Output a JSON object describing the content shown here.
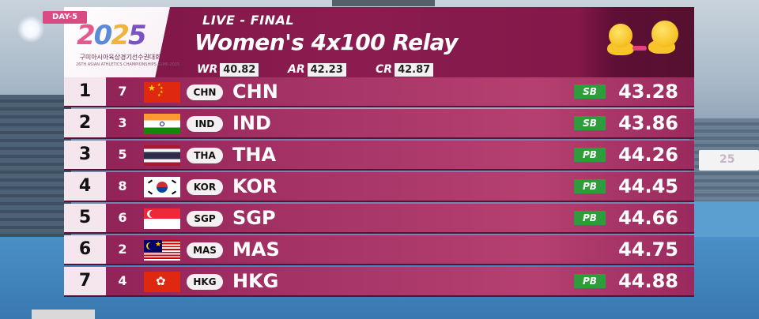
{
  "header": {
    "day_tag": "DAY-5",
    "logo_text": "2025",
    "logo_subtitle": "구미아시아육상경기선수권대회",
    "logo_subtitle_en": "26TH ASIAN ATHLETICS CHAMPIONSHIPS GUMI 2025",
    "live_label": "LIVE - FINAL",
    "event_title": "Women's 4x100 Relay",
    "records": [
      {
        "label": "WR",
        "value": "40.82"
      },
      {
        "label": "AR",
        "value": "42.23"
      },
      {
        "label": "CR",
        "value": "42.87"
      }
    ]
  },
  "results": [
    {
      "rank": "1",
      "lane": "7",
      "flag": "china-flag",
      "code": "CHN",
      "team": "CHN",
      "badge": "SB",
      "time": "43.28"
    },
    {
      "rank": "2",
      "lane": "3",
      "flag": "india-flag",
      "code": "IND",
      "team": "IND",
      "badge": "SB",
      "time": "43.86"
    },
    {
      "rank": "3",
      "lane": "5",
      "flag": "thailand-flag",
      "code": "THA",
      "team": "THA",
      "badge": "PB",
      "time": "44.26"
    },
    {
      "rank": "4",
      "lane": "8",
      "flag": "korea-flag",
      "code": "KOR",
      "team": "KOR",
      "badge": "PB",
      "time": "44.45"
    },
    {
      "rank": "5",
      "lane": "6",
      "flag": "singapore-flag",
      "code": "SGP",
      "team": "SGP",
      "badge": "PB",
      "time": "44.66"
    },
    {
      "rank": "6",
      "lane": "2",
      "flag": "malaysia-flag",
      "code": "MAS",
      "team": "MAS",
      "badge": "",
      "time": "44.75"
    },
    {
      "rank": "7",
      "lane": "4",
      "flag": "hong-kong-flag",
      "code": "HKG",
      "team": "HKG",
      "badge": "PB",
      "time": "44.88"
    }
  ],
  "colors": {
    "header_bg": "#7b1645",
    "row_bg": "#a63467",
    "rank_cell_bg": "#f5e6ee",
    "badge_green": "#2e9c3c",
    "day_tag_pink": "#d94c83"
  }
}
